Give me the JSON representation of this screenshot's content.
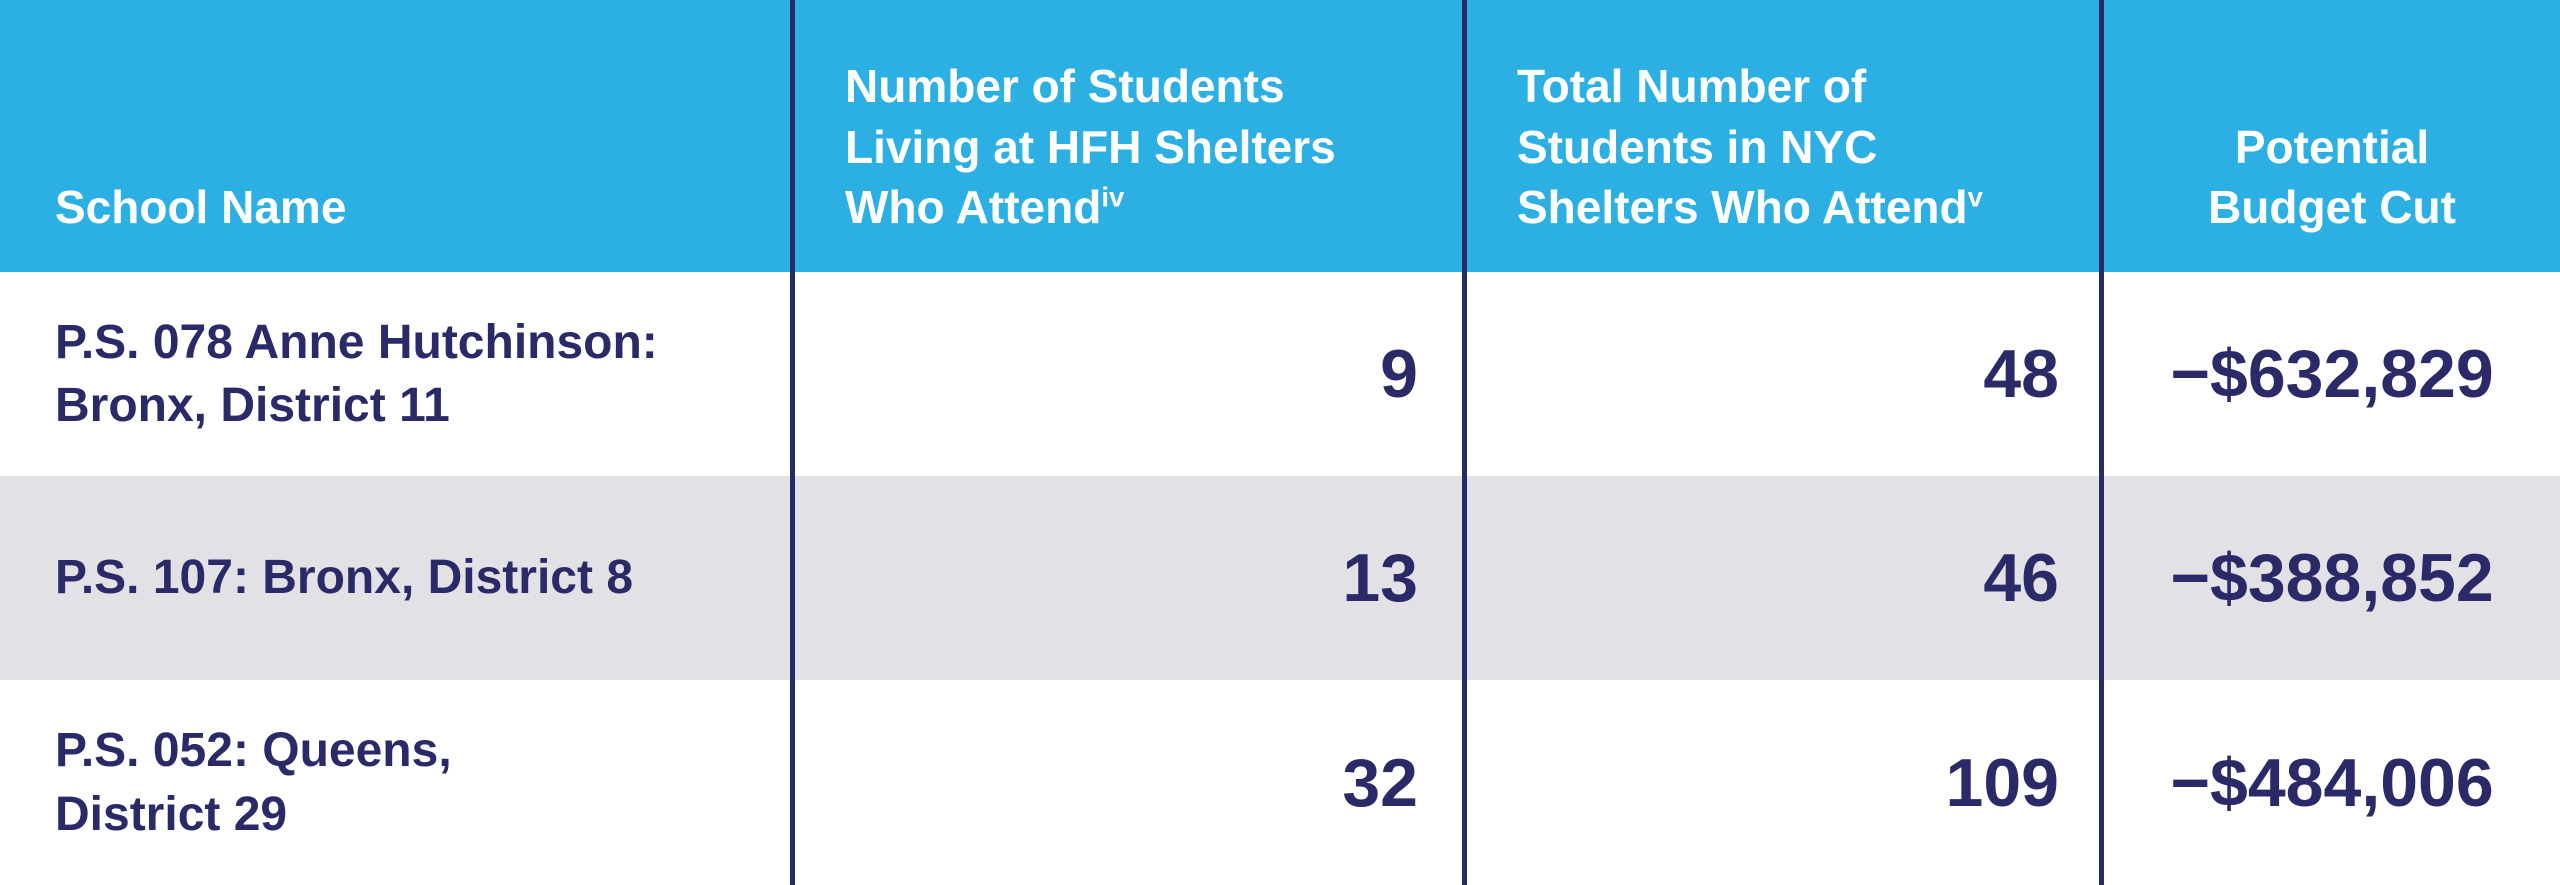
{
  "colors": {
    "header_bg": "#2CB0E4",
    "header_text": "#FFFFFF",
    "row_bg": "#FFFFFF",
    "row_alt_bg": "#E2E2E6",
    "text_navy": "#2B2A68",
    "divider": "#262B66"
  },
  "table": {
    "columns": [
      {
        "label": "School Name",
        "sup": ""
      },
      {
        "label": "Number of Students\nLiving at HFH Shelters\nWho Attend",
        "sup": "iv"
      },
      {
        "label": "Total Number of\nStudents in NYC\nShelters Who Attend",
        "sup": "v"
      },
      {
        "label": "Potential\nBudget Cut",
        "sup": ""
      }
    ],
    "rows": [
      {
        "school": "P.S. 078 Anne Hutchinson:\nBronx, District 11",
        "hfh_students": "9",
        "nyc_students": "48",
        "budget_cut": "−$632,829"
      },
      {
        "school": "P.S. 107: Bronx, District 8",
        "hfh_students": "13",
        "nyc_students": "46",
        "budget_cut": "−$388,852"
      },
      {
        "school": "P.S. 052: Queens,\nDistrict 29",
        "hfh_students": "32",
        "nyc_students": "109",
        "budget_cut": "−$484,006"
      }
    ]
  }
}
